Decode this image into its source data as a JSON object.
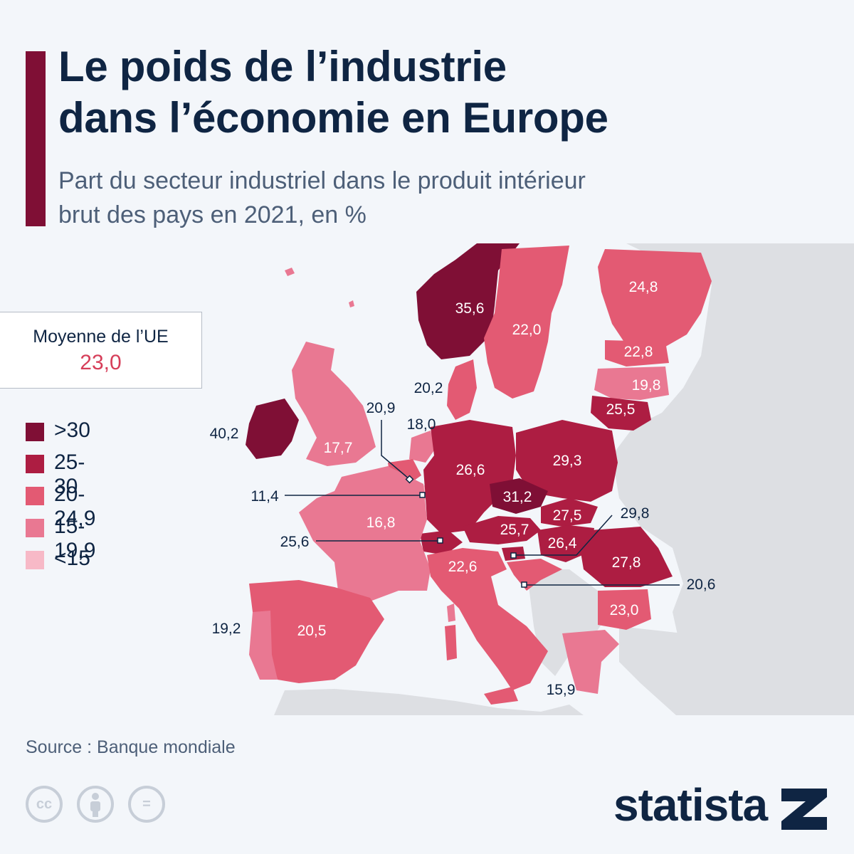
{
  "title_line1": "Le poids de l’industrie",
  "title_line2": "dans l’économie en Europe",
  "subtitle_line1": "Part du secteur industriel dans le produit intérieur",
  "subtitle_line2": "brut des pays en 2021, en %",
  "average": {
    "label": "Moyenne de l’UE",
    "value": "23,0"
  },
  "legend": [
    {
      "label": ">30",
      "color": "#7f0f35"
    },
    {
      "label": "25-30",
      "color": "#ad1d42"
    },
    {
      "label": "20-24,9",
      "color": "#e35a73"
    },
    {
      "label": "15-19,9",
      "color": "#e97892"
    },
    {
      "label": "<15",
      "color": "#f7b9c7"
    }
  ],
  "countries": [
    {
      "name": "Irlande",
      "value": "40,2",
      "class": ">30"
    },
    {
      "name": "Norvège",
      "value": "35,6",
      "class": ">30"
    },
    {
      "name": "Tchéquie",
      "value": "31,2",
      "class": ">30"
    },
    {
      "name": "Suède",
      "value": "22,0",
      "class": "20-24,9"
    },
    {
      "name": "Finlande",
      "value": "24,8",
      "class": "20-24,9"
    },
    {
      "name": "Estonie",
      "value": "22,8",
      "class": "20-24,9"
    },
    {
      "name": "Lettonie",
      "value": "19,8",
      "class": "15-19,9"
    },
    {
      "name": "Lituanie",
      "value": "25,5",
      "class": "25-30"
    },
    {
      "name": "Danemark",
      "value": "20,2",
      "class": "20-24,9"
    },
    {
      "name": "Royaume-Uni",
      "value": "17,7",
      "class": "15-19,9"
    },
    {
      "name": "Pays-Bas",
      "value": "18,0",
      "class": "15-19,9"
    },
    {
      "name": "Belgique",
      "value": "20,9",
      "class": "20-24,9"
    },
    {
      "name": "Luxembourg",
      "value": "11,4",
      "class": "<15"
    },
    {
      "name": "Allemagne",
      "value": "26,6",
      "class": "25-30"
    },
    {
      "name": "Pologne",
      "value": "29,3",
      "class": "25-30"
    },
    {
      "name": "France",
      "value": "16,8",
      "class": "15-19,9"
    },
    {
      "name": "Suisse",
      "value": "25,6",
      "class": "25-30"
    },
    {
      "name": "Autriche",
      "value": "25,7",
      "class": "25-30"
    },
    {
      "name": "Slovaquie",
      "value": "27,5",
      "class": "25-30"
    },
    {
      "name": "Hongrie",
      "value": "26,4",
      "class": "25-30"
    },
    {
      "name": "Slovénie",
      "value": "29,8",
      "class": "25-30"
    },
    {
      "name": "Croatie",
      "value": "20,6",
      "class": "20-24,9"
    },
    {
      "name": "Roumanie",
      "value": "27,8",
      "class": "25-30"
    },
    {
      "name": "Bulgarie",
      "value": "23,0",
      "class": "20-24,9"
    },
    {
      "name": "Italie",
      "value": "22,6",
      "class": "20-24,9"
    },
    {
      "name": "Espagne",
      "value": "20,5",
      "class": "20-24,9"
    },
    {
      "name": "Portugal",
      "value": "19,2",
      "class": "15-19,9"
    },
    {
      "name": "Grèce",
      "value": "15,9",
      "class": "15-19,9"
    }
  ],
  "source": "Source : Banque mondiale",
  "cc_icons": [
    "cc-icon",
    "attribution-icon",
    "no-derivatives-icon"
  ],
  "logo": "statista",
  "colors": {
    "title": "#0f2543",
    "accent": "#7f0f35",
    "non_data_land": "#dddfe3",
    "sea": "#f3f6fa"
  }
}
